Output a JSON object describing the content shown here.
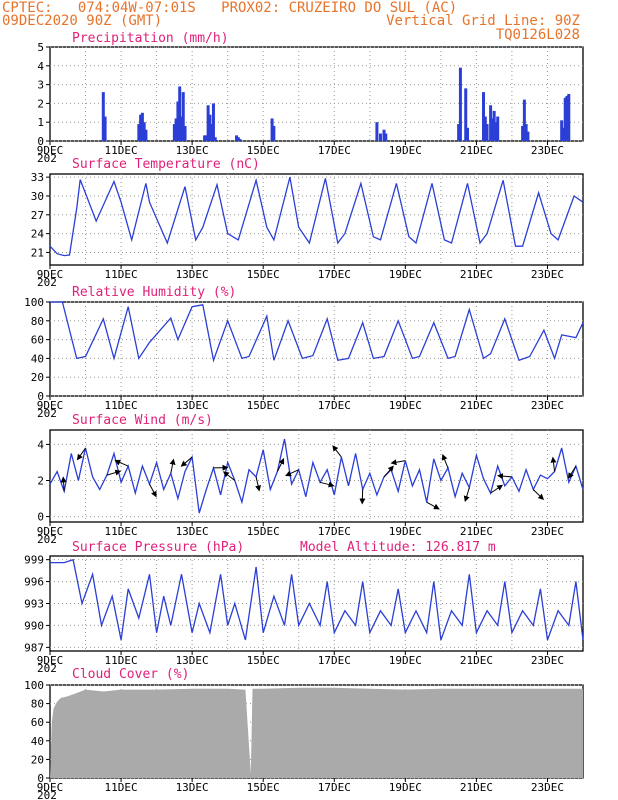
{
  "header": {
    "line1": "CPTEC:   074:04W-07:01S   PROX02: CRUZEIRO DO SUL (AC)",
    "line2_left": "09DEC2020 90Z (GMT)",
    "line2_right": "Vertical Grid Line: 90Z",
    "line3_right": "TQ0126L028"
  },
  "colors": {
    "header": "#e8732a",
    "title": "#e0217a",
    "line": "#2b3fd6",
    "bar": "#2b3fd6",
    "cloud": "#aaaaaa",
    "grid": "#9a9a9a"
  },
  "x_axis": {
    "labels": [
      "9DEC",
      "11DEC",
      "13DEC",
      "15DEC",
      "17DEC",
      "19DEC",
      "21DEC",
      "23DEC"
    ],
    "label_days": [
      0,
      2,
      4,
      6,
      8,
      10,
      12,
      14
    ],
    "start_day": 0,
    "end_day": 15,
    "year_stub": "202"
  },
  "chart_data": [
    {
      "type": "bar",
      "title": "Precipitation (mm/h)",
      "ylim": [
        0,
        5
      ],
      "yticks": [
        "0",
        "1",
        "2",
        "3",
        "4",
        "5"
      ],
      "x_unit": "days since 9DEC",
      "x": [
        1.5,
        1.55,
        2.5,
        2.55,
        2.6,
        2.65,
        2.7,
        3.5,
        3.55,
        3.6,
        3.65,
        3.7,
        3.75,
        3.8,
        4.35,
        4.4,
        4.45,
        4.5,
        4.55,
        4.6,
        4.65,
        5.25,
        5.3,
        5.35,
        6.25,
        6.3,
        9.2,
        9.3,
        9.4,
        9.45,
        11.5,
        11.55,
        11.7,
        11.75,
        12.2,
        12.25,
        12.3,
        12.4,
        12.45,
        12.5,
        12.55,
        12.6,
        13.3,
        13.35,
        13.4,
        13.45,
        14.4,
        14.45,
        14.5,
        14.55,
        14.6
      ],
      "values": [
        2.6,
        1.3,
        0.9,
        1.4,
        1.5,
        1.0,
        0.6,
        0.9,
        1.2,
        2.1,
        2.9,
        1.3,
        2.6,
        0.8,
        0.3,
        0.3,
        1.9,
        1.4,
        0.9,
        2.0,
        0.2,
        0.3,
        0.2,
        0.1,
        1.2,
        0.8,
        1.0,
        0.4,
        0.6,
        0.4,
        0.9,
        3.9,
        2.8,
        0.7,
        2.6,
        1.3,
        0.9,
        1.9,
        1.2,
        1.6,
        1.0,
        1.3,
        0.8,
        2.2,
        0.9,
        0.5,
        1.1,
        0.7,
        2.3,
        2.4,
        2.5
      ]
    },
    {
      "type": "line",
      "title": "Surface Temperature (nC)",
      "ylim": [
        19,
        33.5
      ],
      "yticks": [
        "21",
        "24",
        "27",
        "30",
        "33"
      ],
      "x_unit": "days since 9DEC",
      "x": [
        0,
        0.2,
        0.4,
        0.55,
        0.75,
        0.85,
        1.3,
        1.8,
        2.0,
        2.3,
        2.7,
        2.8,
        3.3,
        3.8,
        4.1,
        4.3,
        4.7,
        5.0,
        5.3,
        5.8,
        6.1,
        6.3,
        6.75,
        7.0,
        7.3,
        7.75,
        8.1,
        8.3,
        8.75,
        9.1,
        9.3,
        9.75,
        10.1,
        10.3,
        10.75,
        11.1,
        11.3,
        11.75,
        12.1,
        12.3,
        12.75,
        13.1,
        13.3,
        13.75,
        14.1,
        14.3,
        14.75,
        15.0
      ],
      "values": [
        22,
        20.8,
        20.5,
        20.6,
        28,
        32.6,
        26,
        32.3,
        29,
        23,
        32,
        29,
        22.5,
        31.5,
        23,
        25,
        31.8,
        24,
        23,
        32.5,
        25,
        23,
        33,
        25,
        22.5,
        32.8,
        22.5,
        24,
        32,
        23.5,
        23,
        32,
        23.5,
        22.5,
        32,
        23,
        22.5,
        32,
        22.5,
        24,
        32.5,
        22,
        22,
        30.5,
        24,
        23,
        30,
        29
      ]
    },
    {
      "type": "line",
      "title": "Relative Humidity (%)",
      "ylim": [
        0,
        100
      ],
      "yticks": [
        "0",
        "20",
        "40",
        "60",
        "80",
        "100"
      ],
      "x_unit": "days since 9DEC",
      "x": [
        0,
        0.35,
        0.75,
        1.0,
        1.5,
        1.8,
        2.2,
        2.5,
        2.8,
        3.4,
        3.6,
        4.0,
        4.3,
        4.6,
        5.0,
        5.4,
        5.6,
        6.1,
        6.3,
        6.7,
        7.1,
        7.4,
        7.8,
        8.1,
        8.4,
        8.8,
        9.1,
        9.4,
        9.8,
        10.2,
        10.4,
        10.8,
        11.2,
        11.4,
        11.8,
        12.2,
        12.4,
        12.8,
        13.2,
        13.5,
        13.9,
        14.2,
        14.4,
        14.8,
        15.0
      ],
      "values": [
        100,
        100,
        40,
        42,
        82,
        40,
        95,
        40,
        57,
        83,
        60,
        95,
        97,
        38,
        80,
        40,
        42,
        85,
        38,
        80,
        40,
        43,
        82,
        38,
        40,
        78,
        40,
        42,
        80,
        40,
        42,
        78,
        40,
        42,
        92,
        40,
        45,
        82,
        38,
        42,
        70,
        40,
        65,
        62,
        78
      ]
    },
    {
      "type": "line",
      "title": "Surface Wind (m/s)",
      "ylim": [
        -0.3,
        4.8
      ],
      "yticks": [
        "0",
        "2",
        "4"
      ],
      "x_unit": "days since 9DEC",
      "x": [
        0,
        0.2,
        0.4,
        0.6,
        0.8,
        1.0,
        1.2,
        1.4,
        1.6,
        1.8,
        2.0,
        2.2,
        2.4,
        2.6,
        2.8,
        3.0,
        3.2,
        3.4,
        3.6,
        3.8,
        4.0,
        4.2,
        4.4,
        4.6,
        4.8,
        5.0,
        5.2,
        5.4,
        5.6,
        5.8,
        6.0,
        6.2,
        6.4,
        6.6,
        6.8,
        7.0,
        7.2,
        7.4,
        7.6,
        7.8,
        8.0,
        8.2,
        8.4,
        8.6,
        8.8,
        9.0,
        9.2,
        9.4,
        9.6,
        9.8,
        10.0,
        10.2,
        10.4,
        10.6,
        10.8,
        11.0,
        11.2,
        11.4,
        11.6,
        11.8,
        12.0,
        12.2,
        12.4,
        12.6,
        12.8,
        13.0,
        13.2,
        13.4,
        13.6,
        13.8,
        14.0,
        14.2,
        14.4,
        14.6,
        14.8,
        15.0
      ],
      "values": [
        1.8,
        2.5,
        1.4,
        3.5,
        2.0,
        3.8,
        2.2,
        1.5,
        2.3,
        3.5,
        1.9,
        2.8,
        1.3,
        2.8,
        1.8,
        3.0,
        1.5,
        2.4,
        1.0,
        2.5,
        3.3,
        0.2,
        1.5,
        2.7,
        1.2,
        3.0,
        2.0,
        0.8,
        2.6,
        2.2,
        3.7,
        1.5,
        2.5,
        4.3,
        1.8,
        2.6,
        1.1,
        3.0,
        1.9,
        2.6,
        1.2,
        3.3,
        1.7,
        3.5,
        1.5,
        2.4,
        1.2,
        2.2,
        2.6,
        1.4,
        3.1,
        1.7,
        2.6,
        0.8,
        3.2,
        2.0,
        2.7,
        1.1,
        2.4,
        1.6,
        3.4,
        2.1,
        1.3,
        2.8,
        1.7,
        2.2,
        1.4,
        2.6,
        1.5,
        2.3,
        2.1,
        2.5,
        3.8,
        1.9,
        2.8,
        1.5
      ]
    },
    {
      "type": "line",
      "title": "Surface Pressure (hPa)",
      "annotation": "Model Altitude: 126.817 m",
      "ylim": [
        986.5,
        999.5
      ],
      "yticks": [
        "987",
        "990",
        "993",
        "996",
        "999"
      ],
      "x_unit": "days since 9DEC",
      "x": [
        0,
        0.4,
        0.65,
        0.9,
        1.2,
        1.45,
        1.75,
        2.0,
        2.2,
        2.5,
        2.8,
        3.0,
        3.2,
        3.4,
        3.7,
        4.0,
        4.2,
        4.5,
        4.8,
        5.0,
        5.2,
        5.5,
        5.8,
        6.0,
        6.3,
        6.6,
        6.8,
        7.0,
        7.3,
        7.6,
        7.8,
        8.0,
        8.3,
        8.6,
        8.8,
        9.0,
        9.3,
        9.6,
        9.8,
        10.0,
        10.3,
        10.6,
        10.8,
        11.0,
        11.3,
        11.6,
        11.8,
        12.0,
        12.3,
        12.6,
        12.8,
        13.0,
        13.3,
        13.6,
        13.8,
        14.0,
        14.3,
        14.6,
        14.8,
        15.0
      ],
      "values": [
        998.6,
        998.6,
        999,
        993,
        997,
        990,
        994,
        988,
        995,
        991,
        997,
        989,
        994,
        990,
        997,
        989,
        993,
        989,
        997,
        990,
        993,
        988,
        998,
        989,
        994,
        990,
        997,
        990,
        993,
        990,
        996,
        989,
        992,
        990,
        996,
        989,
        992,
        990,
        995,
        989,
        992,
        989,
        996,
        988,
        992,
        990,
        997,
        989,
        992,
        990,
        996,
        989,
        992,
        990,
        995,
        988,
        992,
        990,
        996,
        988
      ]
    },
    {
      "type": "area",
      "title": "Cloud Cover (%)",
      "ylim": [
        0,
        100
      ],
      "yticks": [
        "0",
        "20",
        "40",
        "60",
        "80",
        "100"
      ],
      "x_unit": "days since 9DEC",
      "x": [
        0,
        0.05,
        0.1,
        0.2,
        0.3,
        0.5,
        0.8,
        1.0,
        1.5,
        2.0,
        3.0,
        4.0,
        5.0,
        5.5,
        5.65,
        5.7,
        6.0,
        7.0,
        8.0,
        9.0,
        10.0,
        11.0,
        12.0,
        13.0,
        14.0,
        15.0
      ],
      "values": [
        0,
        60,
        75,
        82,
        86,
        88,
        92,
        95,
        93,
        95,
        95,
        96,
        96,
        95,
        5,
        96,
        96,
        97,
        97,
        96,
        95,
        96,
        96,
        96,
        96,
        96
      ]
    }
  ]
}
